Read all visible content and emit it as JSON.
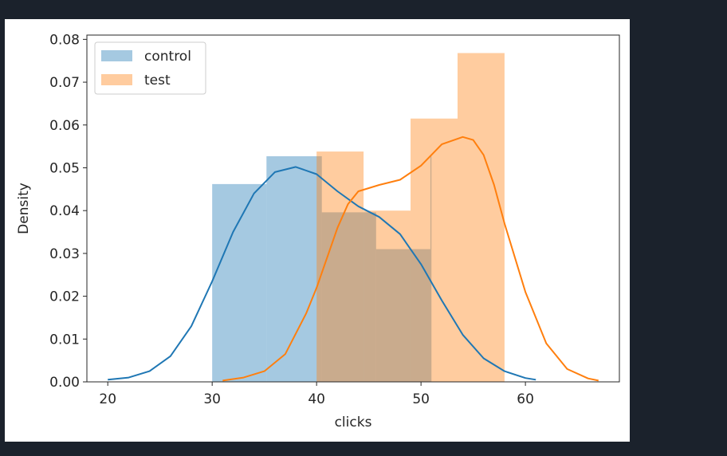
{
  "chart_data": {
    "type": "histogram-kde",
    "xlabel": "clicks",
    "ylabel": "Density",
    "xlim": [
      18,
      69
    ],
    "ylim": [
      0,
      0.081
    ],
    "xticks": [
      20,
      30,
      40,
      50,
      60
    ],
    "yticks": [
      0.0,
      0.01,
      0.02,
      0.03,
      0.04,
      0.05,
      0.06,
      0.07,
      0.08
    ],
    "xtick_labels": [
      "20",
      "30",
      "40",
      "50",
      "60"
    ],
    "ytick_labels": [
      "0.00",
      "0.01",
      "0.02",
      "0.03",
      "0.04",
      "0.05",
      "0.06",
      "0.07",
      "0.08"
    ],
    "grid": false,
    "legend_position": "top-left",
    "series": [
      {
        "name": "control",
        "color": "#1f77b4",
        "bins": [
          {
            "x0": 30.0,
            "x1": 35.2,
            "density": 0.0462
          },
          {
            "x0": 35.2,
            "x1": 40.5,
            "density": 0.0527
          },
          {
            "x0": 40.5,
            "x1": 45.7,
            "density": 0.0396
          },
          {
            "x0": 45.7,
            "x1": 50.9,
            "density": 0.031
          },
          {
            "x0": 50.9,
            "x1": 51.0,
            "density": 0.0527
          }
        ],
        "kde": [
          [
            20,
            0.0005
          ],
          [
            22,
            0.001
          ],
          [
            24,
            0.0025
          ],
          [
            26,
            0.006
          ],
          [
            28,
            0.013
          ],
          [
            30,
            0.0235
          ],
          [
            32,
            0.035
          ],
          [
            34,
            0.044
          ],
          [
            36,
            0.049
          ],
          [
            38,
            0.0502
          ],
          [
            40,
            0.0485
          ],
          [
            42,
            0.0445
          ],
          [
            44,
            0.041
          ],
          [
            46,
            0.0385
          ],
          [
            48,
            0.0345
          ],
          [
            50,
            0.0275
          ],
          [
            52,
            0.019
          ],
          [
            54,
            0.011
          ],
          [
            56,
            0.0055
          ],
          [
            58,
            0.0025
          ],
          [
            60,
            0.0009
          ],
          [
            61,
            0.0005
          ]
        ]
      },
      {
        "name": "test",
        "color": "#ff7f0e",
        "bins": [
          {
            "x0": 40.0,
            "x1": 44.5,
            "density": 0.0538
          },
          {
            "x0": 44.5,
            "x1": 49.0,
            "density": 0.04
          },
          {
            "x0": 49.0,
            "x1": 53.5,
            "density": 0.0615
          },
          {
            "x0": 53.5,
            "x1": 58.0,
            "density": 0.0768
          }
        ],
        "kde": [
          [
            31,
            0.0003
          ],
          [
            33,
            0.001
          ],
          [
            35,
            0.0025
          ],
          [
            37,
            0.0065
          ],
          [
            39,
            0.016
          ],
          [
            40,
            0.022
          ],
          [
            41,
            0.029
          ],
          [
            42,
            0.036
          ],
          [
            43,
            0.0415
          ],
          [
            44,
            0.0445
          ],
          [
            46,
            0.046
          ],
          [
            48,
            0.0472
          ],
          [
            50,
            0.0505
          ],
          [
            52,
            0.0555
          ],
          [
            54,
            0.0572
          ],
          [
            55,
            0.0565
          ],
          [
            56,
            0.053
          ],
          [
            57,
            0.046
          ],
          [
            58,
            0.037
          ],
          [
            60,
            0.021
          ],
          [
            62,
            0.009
          ],
          [
            64,
            0.003
          ],
          [
            66,
            0.0008
          ],
          [
            67,
            0.0003
          ]
        ]
      }
    ]
  }
}
